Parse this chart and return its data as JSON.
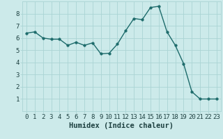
{
  "x": [
    0,
    1,
    2,
    3,
    4,
    5,
    6,
    7,
    8,
    9,
    10,
    11,
    12,
    13,
    14,
    15,
    16,
    17,
    18,
    19,
    20,
    21,
    22,
    23
  ],
  "y": [
    6.4,
    6.5,
    6.0,
    5.9,
    5.9,
    5.4,
    5.65,
    5.4,
    5.6,
    4.7,
    4.75,
    5.5,
    6.6,
    7.6,
    7.5,
    8.5,
    8.6,
    6.5,
    5.4,
    3.9,
    1.6,
    1.0,
    1.0,
    1.0
  ],
  "line_color": "#1d6b6b",
  "marker_color": "#1d6b6b",
  "bg_color": "#cceaea",
  "grid_color": "#aad4d4",
  "xlabel": "Humidex (Indice chaleur)",
  "ylim": [
    0,
    9
  ],
  "xlim": [
    -0.5,
    23.5
  ],
  "yticks": [
    1,
    2,
    3,
    4,
    5,
    6,
    7,
    8
  ],
  "xticks": [
    0,
    1,
    2,
    3,
    4,
    5,
    6,
    7,
    8,
    9,
    10,
    11,
    12,
    13,
    14,
    15,
    16,
    17,
    18,
    19,
    20,
    21,
    22,
    23
  ],
  "font_color": "#1d4040",
  "xlabel_fontsize": 7.5,
  "tick_fontsize": 6.5,
  "linewidth": 1.0,
  "markersize": 2.5
}
